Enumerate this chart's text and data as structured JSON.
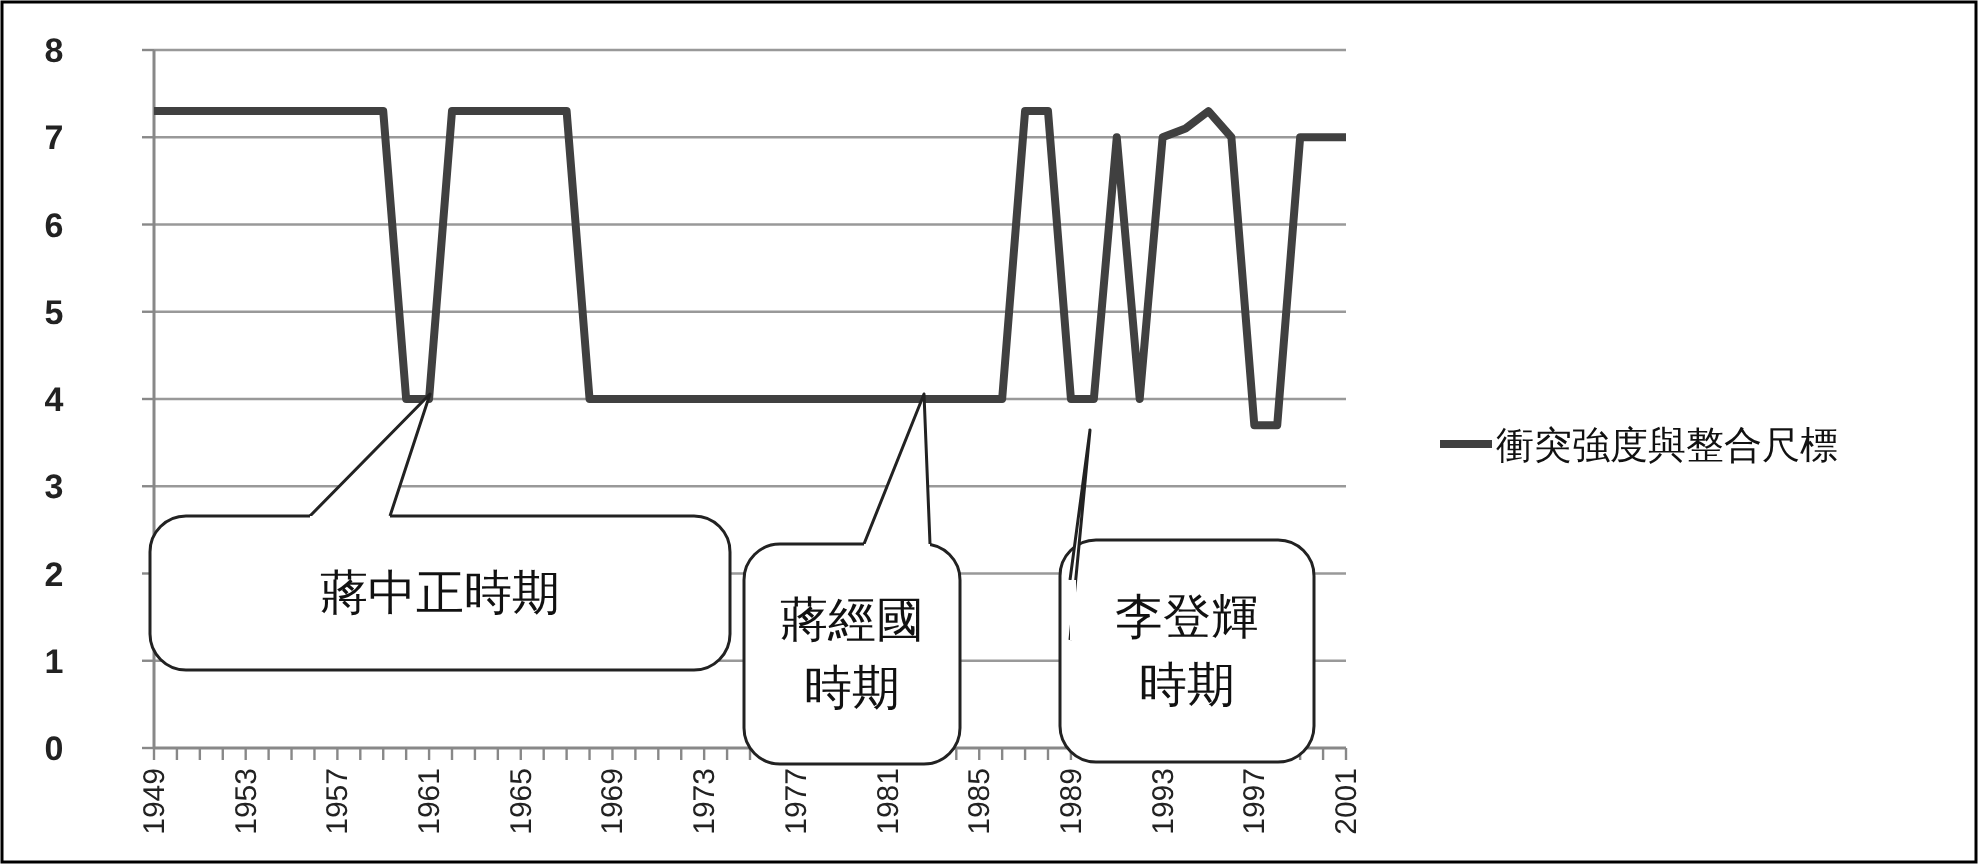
{
  "chart_data": {
    "type": "line",
    "x": [
      1949,
      1950,
      1951,
      1952,
      1953,
      1954,
      1955,
      1956,
      1957,
      1958,
      1959,
      1960,
      1961,
      1962,
      1963,
      1964,
      1965,
      1966,
      1967,
      1968,
      1969,
      1970,
      1971,
      1972,
      1973,
      1974,
      1975,
      1976,
      1977,
      1978,
      1979,
      1980,
      1981,
      1982,
      1983,
      1984,
      1985,
      1986,
      1987,
      1988,
      1989,
      1990,
      1991,
      1992,
      1993,
      1994,
      1995,
      1996,
      1997,
      1998,
      1999,
      2000,
      2001
    ],
    "series": [
      {
        "name": "衝突強度與整合尺標",
        "color": "#404040",
        "values": [
          7.3,
          7.3,
          7.3,
          7.3,
          7.3,
          7.3,
          7.3,
          7.3,
          7.3,
          7.3,
          7.3,
          4,
          4,
          7.3,
          7.3,
          7.3,
          7.3,
          7.3,
          7.3,
          4,
          4,
          4,
          4,
          4,
          4,
          4,
          4,
          4,
          4,
          4,
          4,
          4,
          4,
          4,
          4,
          4,
          4,
          4,
          7.3,
          7.3,
          4,
          4,
          7.0,
          4,
          7.0,
          7.1,
          7.3,
          7.0,
          3.7,
          3.7,
          7.0,
          7.0,
          7.0
        ]
      }
    ],
    "xlim": [
      1949,
      2001
    ],
    "xticks": [
      1949,
      {
        "value": 1950,
        "label": null
      },
      {
        "value": 1951,
        "label": null
      },
      {
        "value": 1952,
        "label": null
      },
      1953,
      {
        "value": 1954,
        "label": null
      },
      {
        "value": 1955,
        "label": null
      },
      {
        "value": 1956,
        "label": null
      },
      1957,
      {
        "value": 1958,
        "label": null
      },
      {
        "value": 1959,
        "label": null
      },
      {
        "value": 1960,
        "label": null
      },
      1961,
      {
        "value": 1962,
        "label": null
      },
      {
        "value": 1963,
        "label": null
      },
      {
        "value": 1964,
        "label": null
      },
      1965,
      {
        "value": 1966,
        "label": null
      },
      {
        "value": 1967,
        "label": null
      },
      {
        "value": 1968,
        "label": null
      },
      1969,
      {
        "value": 1970,
        "label": null
      },
      {
        "value": 1971,
        "label": null
      },
      {
        "value": 1972,
        "label": null
      },
      1973,
      {
        "value": 1974,
        "label": null
      },
      {
        "value": 1975,
        "label": null
      },
      {
        "value": 1976,
        "label": null
      },
      1977,
      {
        "value": 1978,
        "label": null
      },
      {
        "value": 1979,
        "label": null
      },
      {
        "value": 1980,
        "label": null
      },
      1981,
      {
        "value": 1982,
        "label": null
      },
      {
        "value": 1983,
        "label": null
      },
      {
        "value": 1984,
        "label": null
      },
      1985,
      {
        "value": 1986,
        "label": null
      },
      {
        "value": 1987,
        "label": null
      },
      {
        "value": 1988,
        "label": null
      },
      1989,
      {
        "value": 1990,
        "label": null
      },
      {
        "value": 1991,
        "label": null
      },
      {
        "value": 1992,
        "label": null
      },
      1993,
      {
        "value": 1994,
        "label": null
      },
      {
        "value": 1995,
        "label": null
      },
      {
        "value": 1996,
        "label": null
      },
      1997,
      {
        "value": 1998,
        "label": null
      },
      {
        "value": 1999,
        "label": null
      },
      {
        "value": 2000,
        "label": null
      },
      2001
    ],
    "ylim": [
      0,
      8
    ],
    "yticks": [
      0,
      1,
      2,
      3,
      4,
      5,
      6,
      7,
      8
    ],
    "grid": "y",
    "legend": "right",
    "marker": "none",
    "line_style": "solid",
    "annotations": [
      "蔣中正時期",
      "蔣經國時期",
      "李登輝時期"
    ]
  }
}
